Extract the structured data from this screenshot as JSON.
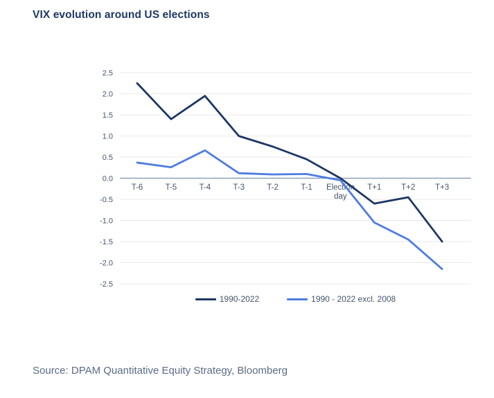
{
  "page": {
    "title": "VIX evolution around US elections",
    "source": "Source: DPAM Quantitative Equity Strategy, Bloomberg"
  },
  "colors": {
    "title": "#1f3864",
    "dark_series": "#1b3664",
    "light_series": "#4e7ce0",
    "gridline": "#e8e9eb",
    "zero_axis": "#8ba1ba",
    "axis_label": "#44546a",
    "source_text": "#5b6b85",
    "background": "#ffffff"
  },
  "chart_data": {
    "type": "line",
    "title": "VIX evolution around US elections",
    "categories": [
      "T-6",
      "T-5",
      "T-4",
      "T-3",
      "T-2",
      "T-1",
      "Election\nday",
      "T+1",
      "T+2",
      "T+3"
    ],
    "series": [
      {
        "name": "1990-2022",
        "color": "#1b3664",
        "values": [
          2.25,
          1.4,
          1.95,
          1.0,
          0.75,
          0.45,
          0.0,
          -0.6,
          -0.45,
          -1.5
        ]
      },
      {
        "name": "1990 - 2022 excl. 2008",
        "color": "#4e7ce0",
        "values": [
          0.37,
          0.26,
          0.66,
          0.12,
          0.09,
          0.1,
          -0.05,
          -1.05,
          -1.45,
          -2.15
        ]
      }
    ],
    "xlabel": "",
    "ylabel": "",
    "ylim": [
      -2.5,
      2.5
    ],
    "ytick_step": 0.5,
    "grid": true,
    "legend_position": "bottom"
  }
}
